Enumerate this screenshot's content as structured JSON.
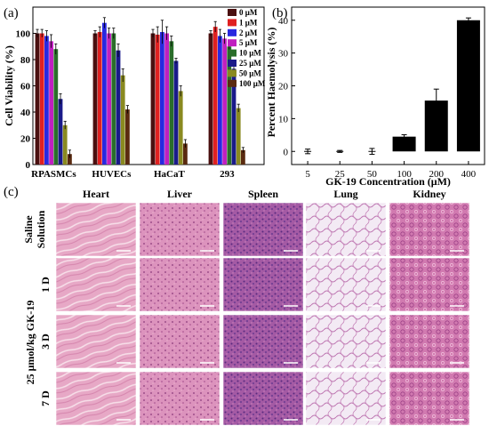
{
  "panels": {
    "a_label": "(a)",
    "b_label": "(b)",
    "c_label": "(c)"
  },
  "chart_data": [
    {
      "type": "bar",
      "panel": "(a)",
      "ylabel": "Cell Viability (%)",
      "xlabel": "",
      "ylim": [
        0,
        120
      ],
      "yticks": [
        "0",
        "20",
        "40",
        "60",
        "80",
        "100"
      ],
      "categories": [
        "RPASMCs",
        "HUVECs",
        "HaCaT",
        "293"
      ],
      "legend_position": "top-right",
      "series": [
        {
          "name": "0 μM",
          "color": "#4a1010",
          "values": [
            100,
            100,
            100,
            100
          ],
          "errors": [
            3,
            2,
            3,
            2
          ]
        },
        {
          "name": "1 μM",
          "color": "#e02020",
          "values": [
            100,
            101,
            99,
            105
          ],
          "errors": [
            3,
            4,
            6,
            4
          ]
        },
        {
          "name": "2 μM",
          "color": "#2828e0",
          "values": [
            98,
            108,
            101,
            98
          ],
          "errors": [
            4,
            4,
            9,
            5
          ]
        },
        {
          "name": "5 μM",
          "color": "#c020c0",
          "values": [
            94,
            100,
            100,
            96
          ],
          "errors": [
            5,
            4,
            5,
            4
          ]
        },
        {
          "name": "10 μM",
          "color": "#2a6e2a",
          "values": [
            88,
            100,
            94,
            90
          ],
          "errors": [
            4,
            4,
            4,
            5
          ]
        },
        {
          "name": "25 μM",
          "color": "#1a1a8a",
          "values": [
            50,
            87,
            79,
            73
          ],
          "errors": [
            4,
            5,
            2,
            3
          ]
        },
        {
          "name": "50 μM",
          "color": "#8a8a20",
          "values": [
            30,
            68,
            56,
            43
          ],
          "errors": [
            3,
            5,
            4,
            3
          ]
        },
        {
          "name": "100 μM",
          "color": "#5a2a10",
          "values": [
            8,
            42,
            16,
            11
          ],
          "errors": [
            3,
            3,
            3,
            2
          ]
        }
      ]
    },
    {
      "type": "bar",
      "panel": "(b)",
      "ylabel": "Percent Haemolysis (%)",
      "xlabel": "GK-19 Concentration (μM)",
      "ylim": [
        -4,
        44
      ],
      "yticks": [
        "0",
        "10",
        "20",
        "30",
        "40"
      ],
      "categories": [
        "5",
        "25",
        "50",
        "100",
        "200",
        "400"
      ],
      "values": [
        0,
        0,
        0,
        4.5,
        15.5,
        40
      ],
      "errors": [
        0.7,
        0.3,
        0.9,
        0.6,
        3.5,
        0.7
      ],
      "color": "#000000"
    }
  ],
  "histology": {
    "columns": [
      "Heart",
      "Liver",
      "Spleen",
      "Lung",
      "Kidney"
    ],
    "row_labels": [
      "Saline\nSolution",
      "1 D",
      "3 D",
      "7 D"
    ],
    "group_label": "25 μmol/kg GK-19"
  }
}
